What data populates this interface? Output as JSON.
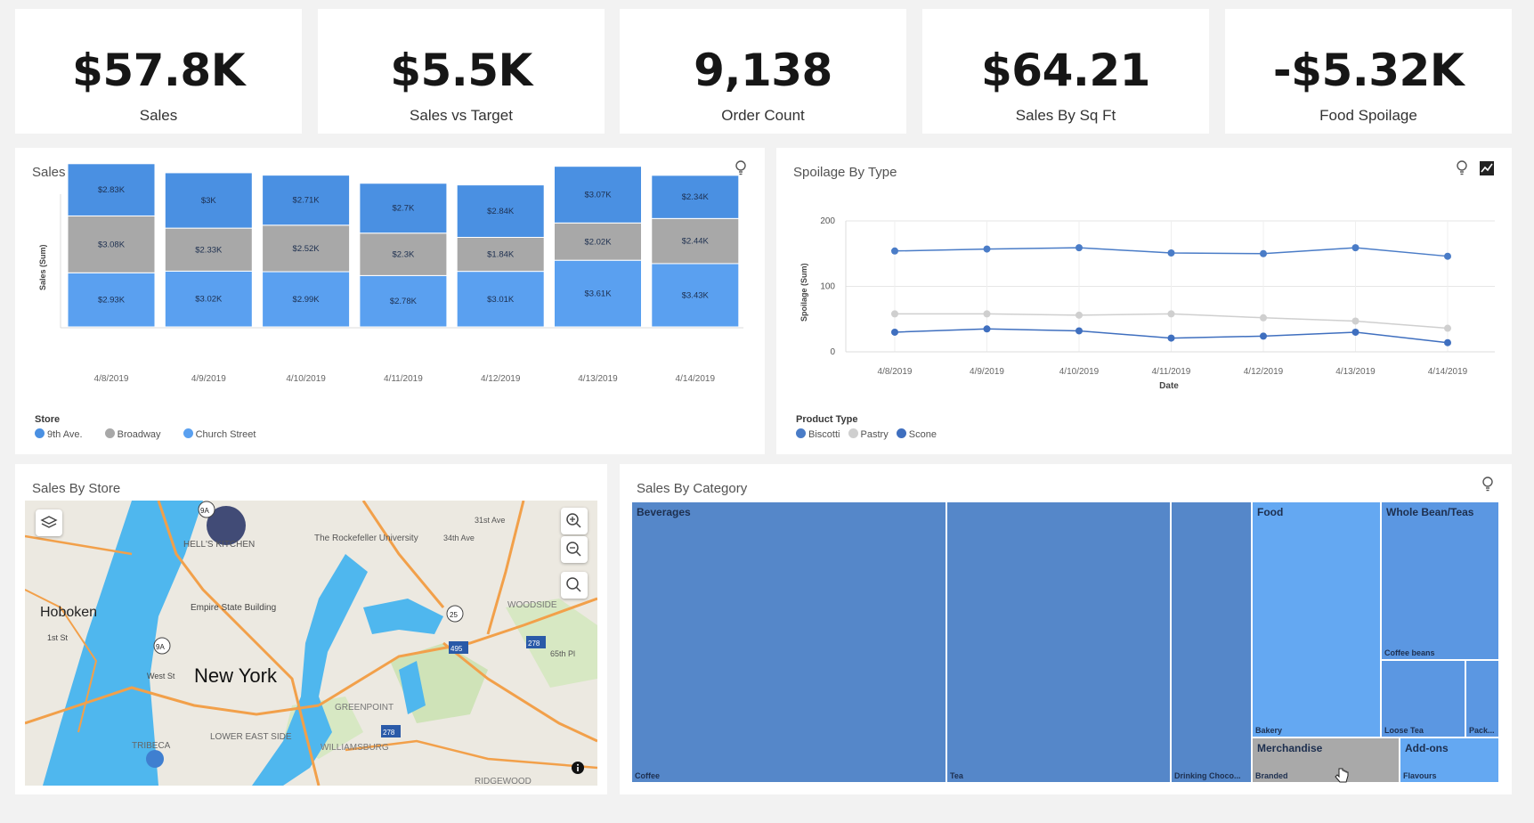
{
  "kpis": [
    {
      "value": "$57.8K",
      "label": "Sales"
    },
    {
      "value": "$5.5K",
      "label": "Sales vs Target"
    },
    {
      "value": "9,138",
      "label": "Order Count"
    },
    {
      "value": "$64.21",
      "label": "Sales By Sq Ft"
    },
    {
      "value": "-$5.32K",
      "label": "Food Spoilage"
    }
  ],
  "sales_by_day": {
    "title": "Sales By Day",
    "legend_title": "Store",
    "legend": [
      "9th Ave.",
      "Broadway",
      "Church Street"
    ]
  },
  "spoilage_by_type": {
    "title": "Spoilage By Type",
    "legend_title": "Product Type",
    "legend": [
      "Biscotti",
      "Pastry",
      "Scone"
    ]
  },
  "sales_by_store": {
    "title": "Sales By Store",
    "map_labels": {
      "hoboken": "Hoboken",
      "new_york": "New York",
      "hells_kitchen": "HELL'S KITCHEN",
      "rockefeller": "The Rockefeller University",
      "empire": "Empire State Building",
      "woodside": "WOODSIDE",
      "greenpoint": "GREENPOINT",
      "williamsburg": "WILLIAMSBURG",
      "tribeca": "TRIBECA",
      "lower_east": "LOWER EAST SIDE",
      "ridgewood": "RIDGEWOOD",
      "st31": "31st Ave",
      "st34": "34th Ave",
      "st1": "1st St",
      "westst": "West St",
      "pl65": "65th Pl",
      "r9a": "9A",
      "r25": "25",
      "r495": "495",
      "r278": "278"
    }
  },
  "sales_by_category": {
    "title": "Sales By Category",
    "cells": {
      "beverages": "Beverages",
      "coffee": "Coffee",
      "tea": "Tea",
      "drinking_choco": "Drinking Choco...",
      "food": "Food",
      "bakery": "Bakery",
      "whole_bean": "Whole Bean/Teas",
      "coffee_beans": "Coffee beans",
      "loose_tea": "Loose Tea",
      "pack": "Pack...",
      "merchandise": "Merchandise",
      "branded": "Branded",
      "addons": "Add-ons",
      "flavours": "Flavours"
    }
  },
  "colors": {
    "ninth_ave": "#4a90e2",
    "broadway": "#a8a8a8",
    "church_street": "#5aa0f0",
    "biscotti": "#4a7cc7",
    "pastry": "#cfcfcf",
    "scone": "#3f6fbf",
    "treemap_beverages": "#5587c9",
    "treemap_food": "#64a8f2",
    "treemap_wholebean": "#5b97e2",
    "treemap_merch": "#a9a9a9"
  },
  "chart_data": [
    {
      "type": "bar",
      "title": "Sales By Day",
      "xlabel": "",
      "ylabel": "Sales (Sum)",
      "categories": [
        "4/8/2019",
        "4/9/2019",
        "4/10/2019",
        "4/11/2019",
        "4/12/2019",
        "4/13/2019",
        "4/14/2019"
      ],
      "stacked": true,
      "series": [
        {
          "name": "Church Street",
          "values": [
            2930,
            3020,
            2990,
            2780,
            3010,
            3610,
            3430
          ],
          "labels": [
            "$2.93K",
            "$3.02K",
            "$2.99K",
            "$2.78K",
            "$3.01K",
            "$3.61K",
            "$3.43K"
          ]
        },
        {
          "name": "Broadway",
          "values": [
            3080,
            2330,
            2520,
            2300,
            1840,
            2020,
            2440
          ],
          "labels": [
            "$3.08K",
            "$2.33K",
            "$2.52K",
            "$2.3K",
            "$1.84K",
            "$2.02K",
            "$2.44K"
          ]
        },
        {
          "name": "9th Ave.",
          "values": [
            2830,
            3000,
            2710,
            2700,
            2840,
            3070,
            2340
          ],
          "labels": [
            "$2.83K",
            "$3K",
            "$2.71K",
            "$2.7K",
            "$2.84K",
            "$3.07K",
            "$2.34K"
          ]
        }
      ],
      "legend_position": "bottom-left"
    },
    {
      "type": "line",
      "title": "Spoilage By Type",
      "xlabel": "Date",
      "ylabel": "Spoilage (Sum)",
      "x": [
        "4/8/2019",
        "4/9/2019",
        "4/10/2019",
        "4/11/2019",
        "4/12/2019",
        "4/13/2019",
        "4/14/2019"
      ],
      "ylim": [
        0,
        200
      ],
      "yticks": [
        0,
        100,
        200
      ],
      "grid": true,
      "series": [
        {
          "name": "Biscotti",
          "values": [
            154,
            157,
            159,
            151,
            150,
            159,
            146
          ]
        },
        {
          "name": "Pastry",
          "values": [
            58,
            58,
            56,
            58,
            52,
            47,
            36
          ]
        },
        {
          "name": "Scone",
          "values": [
            30,
            35,
            32,
            21,
            24,
            30,
            14
          ]
        }
      ],
      "legend_position": "bottom-left"
    }
  ]
}
